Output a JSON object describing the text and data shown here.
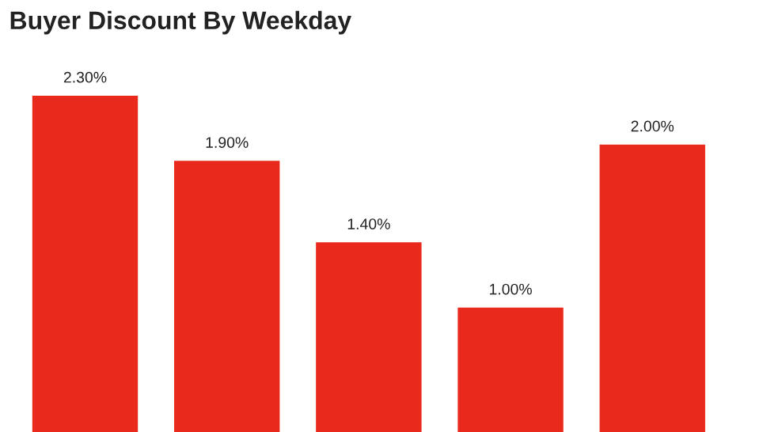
{
  "chart_data": {
    "type": "bar",
    "title": "Buyer Discount By Weekday",
    "categories": [
      null,
      null,
      null,
      null,
      null
    ],
    "values": [
      2.3,
      1.9,
      1.4,
      1.0,
      2.0
    ],
    "value_labels": [
      "2.30%",
      "1.90%",
      "1.40%",
      "1.00%",
      "2.00%"
    ],
    "color": "#e8291c",
    "ylim": [
      0.23,
      2.88
    ]
  }
}
